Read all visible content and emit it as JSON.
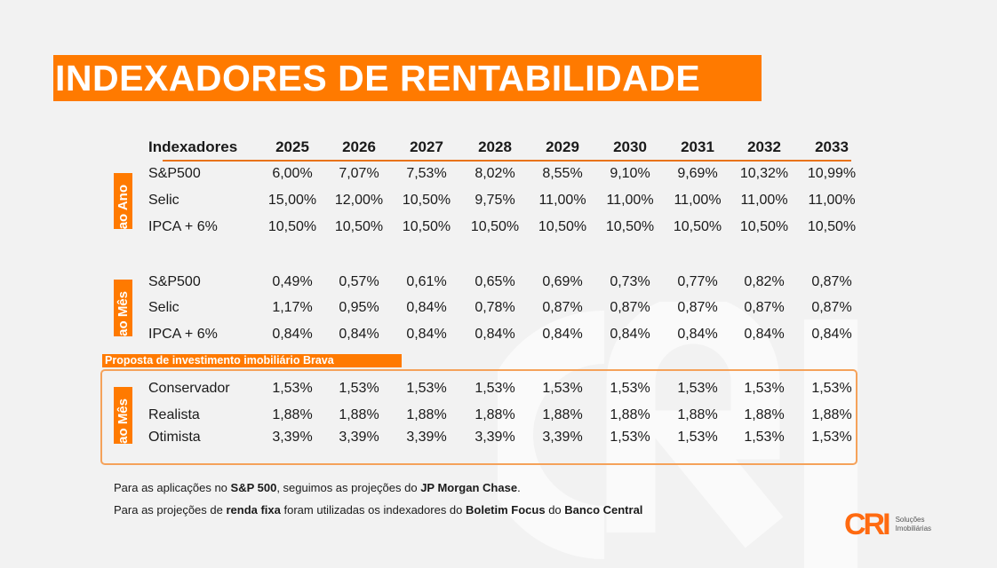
{
  "title": "INDEXADORES DE RENTABILIDADE",
  "header": {
    "label": "Indexadores",
    "years": [
      "2025",
      "2026",
      "2027",
      "2028",
      "2029",
      "2030",
      "2031",
      "2032",
      "2033"
    ]
  },
  "sections": [
    {
      "side_label": "ao Ano",
      "rows": [
        {
          "label": "S&P500",
          "values": [
            "6,00%",
            "7,07%",
            "7,53%",
            "8,02%",
            "8,55%",
            "9,10%",
            "9,69%",
            "10,32%",
            "10,99%"
          ]
        },
        {
          "label": "Selic",
          "values": [
            "15,00%",
            "12,00%",
            "10,50%",
            "9,75%",
            "11,00%",
            "11,00%",
            "11,00%",
            "11,00%",
            "11,00%"
          ]
        },
        {
          "label": "IPCA + 6%",
          "values": [
            "10,50%",
            "10,50%",
            "10,50%",
            "10,50%",
            "10,50%",
            "10,50%",
            "10,50%",
            "10,50%",
            "10,50%"
          ]
        }
      ]
    },
    {
      "side_label": "ao Mês",
      "rows": [
        {
          "label": "S&P500",
          "values": [
            "0,49%",
            "0,57%",
            "0,61%",
            "0,65%",
            "0,69%",
            "0,73%",
            "0,77%",
            "0,82%",
            "0,87%"
          ]
        },
        {
          "label": "Selic",
          "values": [
            "1,17%",
            "0,95%",
            "0,84%",
            "0,78%",
            "0,87%",
            "0,87%",
            "0,87%",
            "0,87%",
            "0,87%"
          ]
        },
        {
          "label": "IPCA + 6%",
          "values": [
            "0,84%",
            "0,84%",
            "0,84%",
            "0,84%",
            "0,84%",
            "0,84%",
            "0,84%",
            "0,84%",
            "0,84%"
          ]
        }
      ]
    },
    {
      "side_label": "ao Mês",
      "rows": [
        {
          "label": "Conservador",
          "values": [
            "1,53%",
            "1,53%",
            "1,53%",
            "1,53%",
            "1,53%",
            "1,53%",
            "1,53%",
            "1,53%",
            "1,53%"
          ]
        },
        {
          "label": "Realista",
          "values": [
            "1,88%",
            "1,88%",
            "1,88%",
            "1,88%",
            "1,88%",
            "1,88%",
            "1,88%",
            "1,88%",
            "1,88%"
          ]
        },
        {
          "label": "Otimista",
          "values": [
            "3,39%",
            "3,39%",
            "3,39%",
            "3,39%",
            "3,39%",
            "1,53%",
            "1,53%",
            "1,53%",
            "1,53%"
          ]
        }
      ]
    }
  ],
  "proposal_label": "Proposta de investimento imobiliário Brava",
  "footnotes": {
    "line1": {
      "a": "Para as aplicações no ",
      "b": "S&P 500",
      "c": ", seguimos as projeções do ",
      "d": "JP Morgan Chase",
      "e": "."
    },
    "line2": {
      "a": "Para as projeções de ",
      "b": "renda fixa",
      "c": " foram utilizadas os indexadores do ",
      "d": "Boletim Focus",
      "e": " do ",
      "f": "Banco Central"
    }
  },
  "logo": {
    "mark": "CRI",
    "line1": "Soluções",
    "line2": "Imobiliárias"
  },
  "colors": {
    "accent": "#ff7a00",
    "background": "#f2f2f2"
  }
}
